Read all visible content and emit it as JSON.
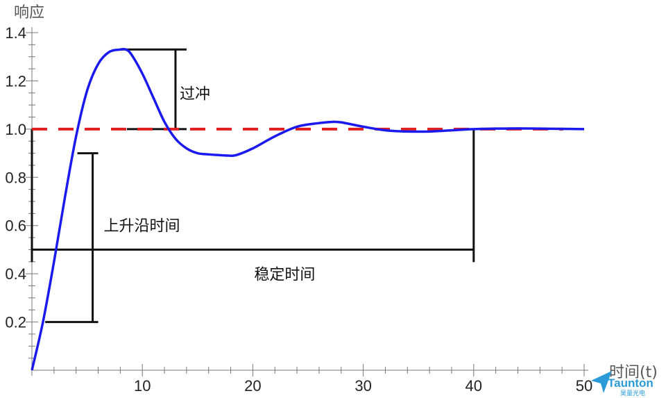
{
  "chart_data": {
    "type": "line",
    "xlabel": "时间(t)",
    "ylabel": "响应",
    "xlim": [
      0,
      50
    ],
    "ylim": [
      0,
      1.4
    ],
    "x_ticks": [
      10,
      20,
      30,
      40,
      50
    ],
    "y_ticks": [
      0.2,
      0.4,
      0.6,
      0.8,
      1.0,
      1.2,
      1.4
    ],
    "x_tick_labels": [
      "10",
      "20",
      "30",
      "40",
      "50"
    ],
    "y_tick_labels": [
      "0.2",
      "0.4",
      "0.6",
      "0.8",
      "1.0",
      "1.2",
      "1.4"
    ],
    "grid": false,
    "series": [
      {
        "kind": "response",
        "color": "#1a1aee",
        "x": [
          0,
          1,
          2,
          3,
          4,
          5,
          6,
          7,
          8,
          8.5,
          9,
          10,
          11,
          12,
          13,
          14,
          15,
          16,
          17,
          17.8,
          18.5,
          20,
          22,
          24,
          26,
          27.2,
          28,
          30,
          32,
          34,
          36,
          38,
          40,
          42,
          44,
          46,
          48,
          50
        ],
        "y": [
          0,
          0.2,
          0.45,
          0.72,
          0.97,
          1.16,
          1.27,
          1.32,
          1.33,
          1.33,
          1.31,
          1.23,
          1.13,
          1.03,
          0.96,
          0.92,
          0.9,
          0.895,
          0.892,
          0.89,
          0.892,
          0.92,
          0.97,
          1.01,
          1.025,
          1.03,
          1.028,
          1.01,
          0.995,
          0.99,
          0.99,
          0.995,
          1.0,
          1.002,
          1.003,
          1.002,
          1.001,
          1.0
        ]
      },
      {
        "kind": "setpoint",
        "color": "#e02020",
        "x": [
          0,
          50
        ],
        "y": [
          1.0,
          1.0
        ]
      }
    ],
    "annotations": {
      "overshoot": {
        "label": "过冲",
        "x": 13,
        "y_low": 1.0,
        "y_high": 1.33
      },
      "rise_time": {
        "label": "上升沿时间",
        "x_bar": 5.5,
        "x_low": 1.2,
        "y_low": 0.2,
        "y_high": 0.9
      },
      "settling_time": {
        "label": "稳定时间",
        "x_start": 0,
        "x_end": 40,
        "y": 0.5
      }
    }
  },
  "logo": {
    "mark": "Taunton",
    "caption": "昊量光电",
    "icon": "paper-plane-icon",
    "color": "#2a9bd8"
  }
}
